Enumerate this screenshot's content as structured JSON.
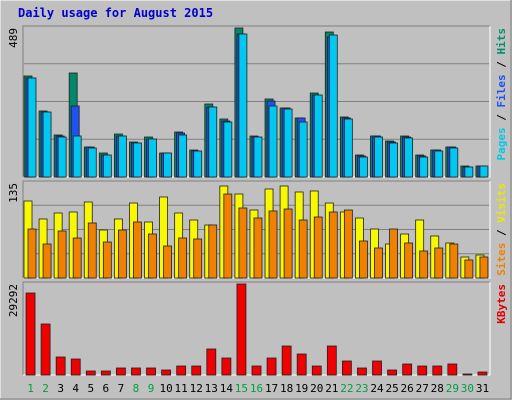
{
  "chart_data": {
    "type": "bar",
    "title": "Daily usage for August 2015",
    "categories": [
      "1",
      "2",
      "3",
      "4",
      "5",
      "6",
      "7",
      "8",
      "9",
      "10",
      "11",
      "12",
      "13",
      "14",
      "15",
      "16",
      "17",
      "18",
      "19",
      "20",
      "21",
      "22",
      "23",
      "24",
      "25",
      "26",
      "27",
      "28",
      "29",
      "30",
      "31"
    ],
    "weekend_days": [
      1,
      2,
      8,
      9,
      15,
      16,
      22,
      23,
      29,
      30
    ],
    "panels": [
      {
        "id": "hits-pages-files",
        "ymax_label": "489",
        "ymax": 489,
        "axis_labels": [
          {
            "text": "Pages",
            "color": "#00c8e8"
          },
          {
            "text": "Files",
            "color": "#2050f0"
          },
          {
            "text": "Hits",
            "color": "#00906a"
          }
        ],
        "series": [
          {
            "name": "Hits",
            "color": "#008868",
            "values": [
              330,
              218,
              138,
              340,
              100,
              78,
              140,
              115,
              130,
              80,
              148,
              90,
              240,
              190,
              489,
              133,
              255,
              228,
              195,
              275,
              475,
              197,
              73,
              135,
              118,
              135,
              72,
              90,
              100,
              35,
              37
            ]
          },
          {
            "name": "Files",
            "color": "#2050f0",
            "values": [
              325,
              213,
              133,
              233,
              98,
              73,
              133,
              111,
              125,
              80,
              146,
              86,
              230,
              185,
              470,
              132,
              248,
              225,
              192,
              270,
              460,
              193,
              70,
              133,
              115,
              130,
              68,
              87,
              98,
              33,
              35
            ]
          },
          {
            "name": "Pages",
            "color": "#00c8f0",
            "values": [
              325,
              212,
              132,
              135,
              95,
              73,
              133,
              110,
              125,
              78,
              137,
              85,
              230,
              180,
              470,
              131,
              232,
              223,
              180,
              268,
              465,
              190,
              66,
              132,
              111,
              128,
              65,
              85,
              95,
              33,
              35
            ]
          }
        ]
      },
      {
        "id": "visits-sites",
        "ymax_label": "135",
        "ymax": 135,
        "axis_labels": [
          {
            "text": "Sites",
            "color": "#f08000"
          },
          {
            "text": "Visits",
            "color": "#e8e800"
          }
        ],
        "series": [
          {
            "name": "Visits",
            "color": "#f8f800",
            "values": [
              110,
              84,
              92,
              94,
              108,
              68,
              84,
              106,
              80,
              115,
              92,
              82,
              75,
              131,
              120,
              97,
              127,
              131,
              122,
              123,
              106,
              94,
              85,
              70,
              48,
              62,
              82,
              60,
              50,
              30,
              32
            ]
          },
          {
            "name": "Sites",
            "color": "#f08000",
            "values": [
              69,
              49,
              67,
              57,
              78,
              51,
              68,
              79,
              62,
              45,
              57,
              55,
              75,
              120,
              100,
              85,
              95,
              98,
              82,
              87,
              94,
              97,
              53,
              43,
              69,
              50,
              38,
              42,
              48,
              26,
              30
            ]
          }
        ]
      },
      {
        "id": "kbytes",
        "ymax_label": "29292",
        "ymax": 29292,
        "axis_labels": [
          {
            "text": "KBytes",
            "color": "#e00000"
          }
        ],
        "series": [
          {
            "name": "KBytes",
            "color": "#f00000",
            "values": [
              26400,
              16500,
              5800,
              5300,
              1300,
              1400,
              2400,
              2200,
              2300,
              1500,
              3000,
              2900,
              8500,
              5600,
              29292,
              2800,
              5500,
              9200,
              6900,
              2800,
              9300,
              4400,
              2200,
              4500,
              1700,
              3500,
              2900,
              3000,
              3700,
              300,
              1000
            ]
          }
        ]
      }
    ]
  }
}
